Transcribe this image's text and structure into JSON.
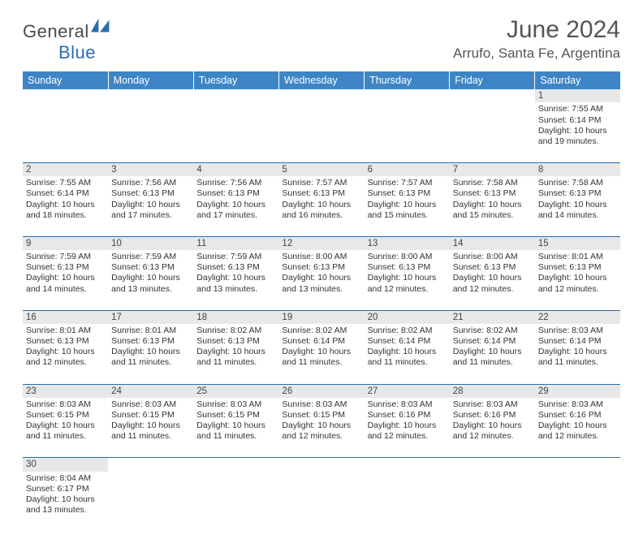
{
  "logo": {
    "text1": "General",
    "text2": "Blue"
  },
  "title": "June 2024",
  "location": "Arrufo, Santa Fe, Argentina",
  "colors": {
    "headerBg": "#3d85c6",
    "headerText": "#ffffff",
    "dayNumBg": "#e8e8e8",
    "border": "#2a6db0"
  },
  "dayHeaders": [
    "Sunday",
    "Monday",
    "Tuesday",
    "Wednesday",
    "Thursday",
    "Friday",
    "Saturday"
  ],
  "weeks": [
    [
      null,
      null,
      null,
      null,
      null,
      null,
      {
        "n": "1",
        "sr": "Sunrise: 7:55 AM",
        "ss": "Sunset: 6:14 PM",
        "dl": "Daylight: 10 hours and 19 minutes."
      }
    ],
    [
      {
        "n": "2",
        "sr": "Sunrise: 7:55 AM",
        "ss": "Sunset: 6:14 PM",
        "dl": "Daylight: 10 hours and 18 minutes."
      },
      {
        "n": "3",
        "sr": "Sunrise: 7:56 AM",
        "ss": "Sunset: 6:13 PM",
        "dl": "Daylight: 10 hours and 17 minutes."
      },
      {
        "n": "4",
        "sr": "Sunrise: 7:56 AM",
        "ss": "Sunset: 6:13 PM",
        "dl": "Daylight: 10 hours and 17 minutes."
      },
      {
        "n": "5",
        "sr": "Sunrise: 7:57 AM",
        "ss": "Sunset: 6:13 PM",
        "dl": "Daylight: 10 hours and 16 minutes."
      },
      {
        "n": "6",
        "sr": "Sunrise: 7:57 AM",
        "ss": "Sunset: 6:13 PM",
        "dl": "Daylight: 10 hours and 15 minutes."
      },
      {
        "n": "7",
        "sr": "Sunrise: 7:58 AM",
        "ss": "Sunset: 6:13 PM",
        "dl": "Daylight: 10 hours and 15 minutes."
      },
      {
        "n": "8",
        "sr": "Sunrise: 7:58 AM",
        "ss": "Sunset: 6:13 PM",
        "dl": "Daylight: 10 hours and 14 minutes."
      }
    ],
    [
      {
        "n": "9",
        "sr": "Sunrise: 7:59 AM",
        "ss": "Sunset: 6:13 PM",
        "dl": "Daylight: 10 hours and 14 minutes."
      },
      {
        "n": "10",
        "sr": "Sunrise: 7:59 AM",
        "ss": "Sunset: 6:13 PM",
        "dl": "Daylight: 10 hours and 13 minutes."
      },
      {
        "n": "11",
        "sr": "Sunrise: 7:59 AM",
        "ss": "Sunset: 6:13 PM",
        "dl": "Daylight: 10 hours and 13 minutes."
      },
      {
        "n": "12",
        "sr": "Sunrise: 8:00 AM",
        "ss": "Sunset: 6:13 PM",
        "dl": "Daylight: 10 hours and 13 minutes."
      },
      {
        "n": "13",
        "sr": "Sunrise: 8:00 AM",
        "ss": "Sunset: 6:13 PM",
        "dl": "Daylight: 10 hours and 12 minutes."
      },
      {
        "n": "14",
        "sr": "Sunrise: 8:00 AM",
        "ss": "Sunset: 6:13 PM",
        "dl": "Daylight: 10 hours and 12 minutes."
      },
      {
        "n": "15",
        "sr": "Sunrise: 8:01 AM",
        "ss": "Sunset: 6:13 PM",
        "dl": "Daylight: 10 hours and 12 minutes."
      }
    ],
    [
      {
        "n": "16",
        "sr": "Sunrise: 8:01 AM",
        "ss": "Sunset: 6:13 PM",
        "dl": "Daylight: 10 hours and 12 minutes."
      },
      {
        "n": "17",
        "sr": "Sunrise: 8:01 AM",
        "ss": "Sunset: 6:13 PM",
        "dl": "Daylight: 10 hours and 11 minutes."
      },
      {
        "n": "18",
        "sr": "Sunrise: 8:02 AM",
        "ss": "Sunset: 6:13 PM",
        "dl": "Daylight: 10 hours and 11 minutes."
      },
      {
        "n": "19",
        "sr": "Sunrise: 8:02 AM",
        "ss": "Sunset: 6:14 PM",
        "dl": "Daylight: 10 hours and 11 minutes."
      },
      {
        "n": "20",
        "sr": "Sunrise: 8:02 AM",
        "ss": "Sunset: 6:14 PM",
        "dl": "Daylight: 10 hours and 11 minutes."
      },
      {
        "n": "21",
        "sr": "Sunrise: 8:02 AM",
        "ss": "Sunset: 6:14 PM",
        "dl": "Daylight: 10 hours and 11 minutes."
      },
      {
        "n": "22",
        "sr": "Sunrise: 8:03 AM",
        "ss": "Sunset: 6:14 PM",
        "dl": "Daylight: 10 hours and 11 minutes."
      }
    ],
    [
      {
        "n": "23",
        "sr": "Sunrise: 8:03 AM",
        "ss": "Sunset: 6:15 PM",
        "dl": "Daylight: 10 hours and 11 minutes."
      },
      {
        "n": "24",
        "sr": "Sunrise: 8:03 AM",
        "ss": "Sunset: 6:15 PM",
        "dl": "Daylight: 10 hours and 11 minutes."
      },
      {
        "n": "25",
        "sr": "Sunrise: 8:03 AM",
        "ss": "Sunset: 6:15 PM",
        "dl": "Daylight: 10 hours and 11 minutes."
      },
      {
        "n": "26",
        "sr": "Sunrise: 8:03 AM",
        "ss": "Sunset: 6:15 PM",
        "dl": "Daylight: 10 hours and 12 minutes."
      },
      {
        "n": "27",
        "sr": "Sunrise: 8:03 AM",
        "ss": "Sunset: 6:16 PM",
        "dl": "Daylight: 10 hours and 12 minutes."
      },
      {
        "n": "28",
        "sr": "Sunrise: 8:03 AM",
        "ss": "Sunset: 6:16 PM",
        "dl": "Daylight: 10 hours and 12 minutes."
      },
      {
        "n": "29",
        "sr": "Sunrise: 8:03 AM",
        "ss": "Sunset: 6:16 PM",
        "dl": "Daylight: 10 hours and 12 minutes."
      }
    ],
    [
      {
        "n": "30",
        "sr": "Sunrise: 8:04 AM",
        "ss": "Sunset: 6:17 PM",
        "dl": "Daylight: 10 hours and 13 minutes."
      },
      null,
      null,
      null,
      null,
      null,
      null
    ]
  ]
}
